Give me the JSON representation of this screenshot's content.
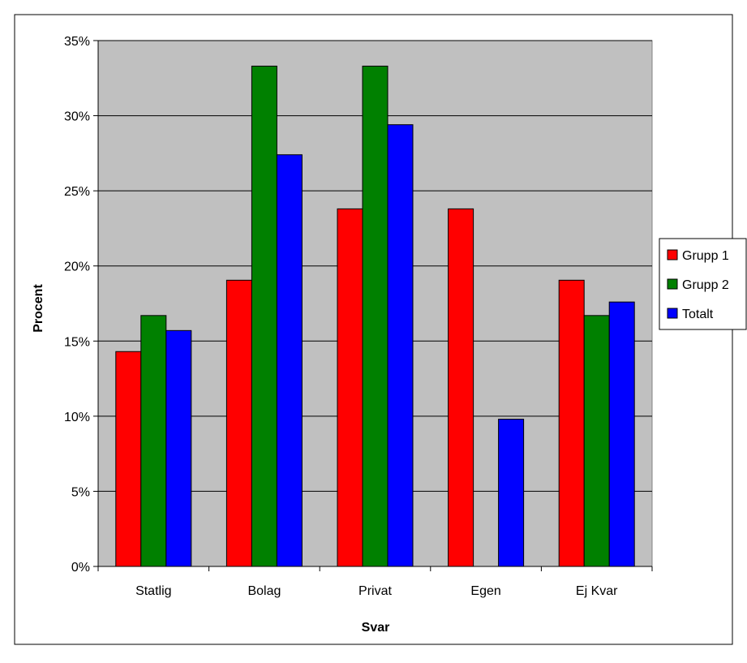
{
  "chart_data": {
    "type": "bar",
    "categories": [
      "Statlig",
      "Bolag",
      "Privat",
      "Egen",
      "Ej Kvar"
    ],
    "series": [
      {
        "name": "Grupp 1",
        "color": "#ff0000",
        "values": [
          14.3,
          19.05,
          23.8,
          23.8,
          19.05
        ]
      },
      {
        "name": "Grupp 2",
        "color": "#008000",
        "values": [
          16.7,
          33.3,
          33.3,
          0,
          16.7
        ]
      },
      {
        "name": "Totalt",
        "color": "#0000ff",
        "values": [
          15.7,
          27.4,
          29.4,
          9.8,
          17.6
        ]
      }
    ],
    "title": "",
    "xlabel": "Svar",
    "ylabel": "Procent",
    "ylim": [
      0,
      35
    ],
    "yticks": [
      0,
      5,
      10,
      15,
      20,
      25,
      30,
      35
    ],
    "ytick_suffix": "%",
    "grid": true,
    "plot_background": "#c0c0c0",
    "legend_position": "right"
  }
}
